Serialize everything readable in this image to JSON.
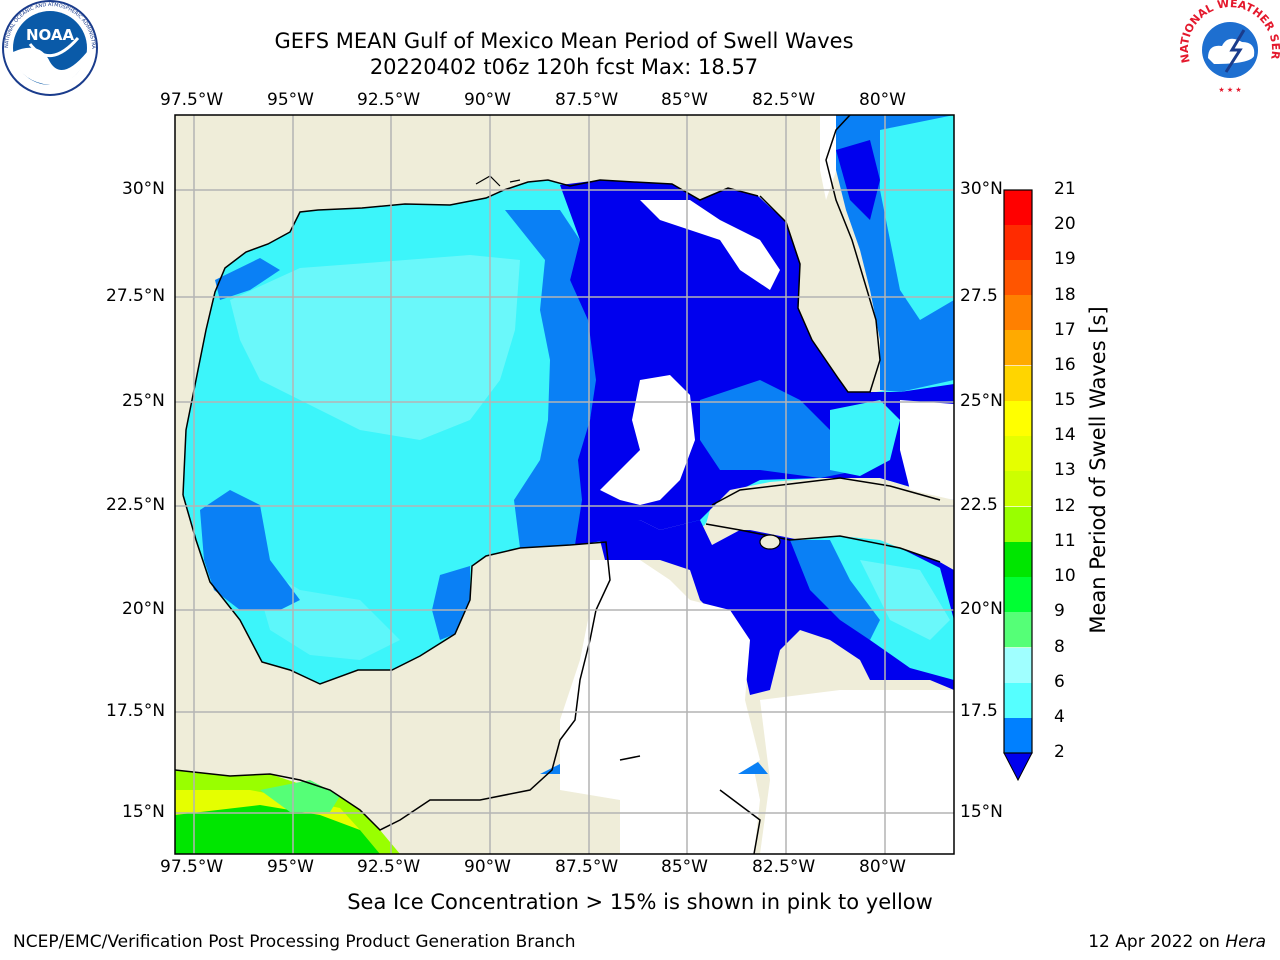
{
  "title_line1": "GEFS MEAN Gulf of Mexico Mean Period of Swell Waves",
  "title_line2": "20220402 t06z 120h fcst   Max: 18.57",
  "lon_ticks": [
    "97.5°W",
    "95°W",
    "92.5°W",
    "90°W",
    "87.5°W",
    "85°W",
    "82.5°W",
    "80°W"
  ],
  "lat_ticks_left": [
    "30°N",
    "27.5°N",
    "25°N",
    "22.5°N",
    "20°N",
    "17.5°N",
    "15°N"
  ],
  "lat_ticks_right": [
    "30°N",
    "27.5",
    "25°N",
    "22.5",
    "20°N",
    "17.5",
    "15°N"
  ],
  "colorbar": {
    "label": "Mean Period of Swell Waves [s]",
    "ticks": [
      "21",
      "20",
      "19",
      "18",
      "17",
      "16",
      "15",
      "14",
      "13",
      "12",
      "11",
      "10",
      "9",
      "8",
      "6",
      "4",
      "2"
    ],
    "colors": [
      "#ff0000",
      "#ff2b00",
      "#ff5500",
      "#ff8000",
      "#ffaa00",
      "#ffd500",
      "#ffff00",
      "#e5ff00",
      "#ccff00",
      "#99ff00",
      "#00e600",
      "#00ff33",
      "#55ff77",
      "#a0ffff",
      "#55ffff",
      "#00eeff",
      "#0080ff",
      "#0000ee"
    ]
  },
  "colors": {
    "land": "#efedd9",
    "ocean_deep_blue": "#0000ee",
    "ocean_mid_blue": "#0a80f5",
    "ocean_cyan": "#3cf5fa",
    "ocean_light_cyan": "#7dfafa",
    "grid": "#b4b4b4"
  },
  "logos": {
    "noaa": "NOAA",
    "noaa_ring": "NATIONAL OCEANIC AND ATMOSPHERIC ADMINISTRATION · U.S. DEPARTMENT OF COMMERCE",
    "nws_ring": "NATIONAL WEATHER SERVICE"
  },
  "note": "Sea Ice Concentration > 15% is shown in pink to yellow",
  "footer_left": "NCEP/EMC/Verification Post Processing Product Generation Branch",
  "footer_date": "12 Apr 2022 on ",
  "footer_host": "Hera"
}
